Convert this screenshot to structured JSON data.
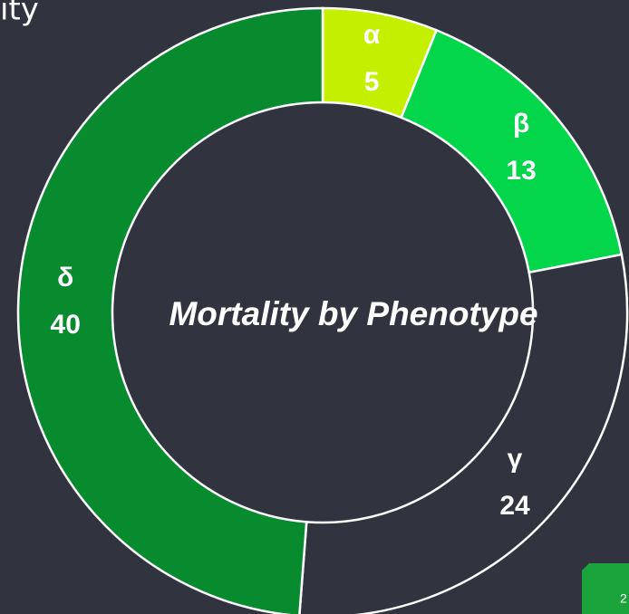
{
  "heading": "ity",
  "slide_number": "2",
  "chart_data": {
    "type": "donut",
    "title": "Mortality by Phenotype",
    "categories": [
      "α",
      "β",
      "γ",
      "δ"
    ],
    "values": [
      5,
      13,
      24,
      40
    ],
    "colors": [
      "#c4f000",
      "#04d64c",
      "#31343f",
      "#088a2f"
    ]
  }
}
